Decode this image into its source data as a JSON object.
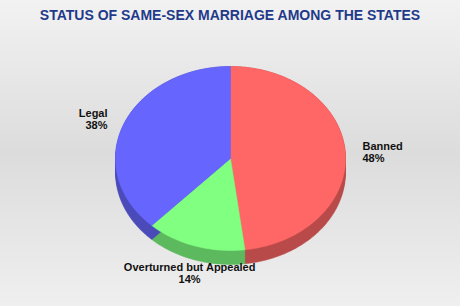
{
  "chart_data": {
    "type": "pie",
    "title": "STATUS OF SAME-SEX MARRIAGE AMONG THE STATES",
    "categories": [
      "Banned",
      "Overturned but Appealed",
      "Legal"
    ],
    "values": [
      48,
      14,
      38
    ],
    "value_labels": [
      "48%",
      "14%",
      "38%"
    ],
    "colors": [
      "#ff6666",
      "#80ff80",
      "#6666ff"
    ],
    "data_labels": true
  }
}
